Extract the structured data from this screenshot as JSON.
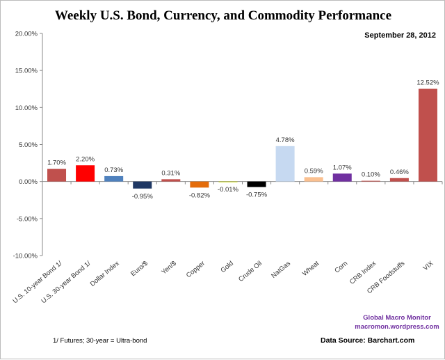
{
  "chart_data": {
    "type": "bar",
    "title": "Weekly U.S. Bond, Currency, and Commodity Performance",
    "date": "September 28, 2012",
    "categories": [
      "U.S. 10-year Bond 1/",
      "U.S. 30-year Bond 1/",
      "Dollar Index",
      "Euro/$",
      "Yen/$",
      "Copper",
      "Gold",
      "Crude Oil",
      "NatGas",
      "Wheat",
      "Corn",
      "CRB Index",
      "CRB Foodstuffs",
      "VIX"
    ],
    "values": [
      1.7,
      2.2,
      0.73,
      -0.95,
      0.31,
      -0.82,
      -0.01,
      -0.75,
      4.78,
      0.59,
      1.07,
      0.1,
      0.46,
      12.52
    ],
    "data_labels": [
      "1.70%",
      "2.20%",
      "0.73%",
      "-0.95%",
      "0.31%",
      "-0.82%",
      "-0.01%",
      "-0.75%",
      "4.78%",
      "0.59%",
      "1.07%",
      "0.10%",
      "0.46%",
      "12.52%"
    ],
    "colors": [
      "#c0504d",
      "#ff0000",
      "#4f81bd",
      "#1f3864",
      "#c0504d",
      "#e46c0a",
      "#c4d600",
      "#000000",
      "#c6d9f1",
      "#fac090",
      "#7030a0",
      "#c0504d",
      "#c0504d",
      "#c0504d"
    ],
    "ylim": [
      -10,
      20
    ],
    "yticks": [
      "-10.00%",
      "-5.00%",
      "0.00%",
      "5.00%",
      "10.00%",
      "15.00%",
      "20.00%"
    ],
    "ytick_values": [
      -10,
      -5,
      0,
      5,
      10,
      15,
      20
    ],
    "xlabel": "",
    "ylabel": "",
    "grid": false,
    "legend": "none"
  },
  "footnote": "1/ Futures; 30-year = Ultra-bond",
  "source": "Data Source:  Barchart.com",
  "credit_name": "Global  Macro  Monitor",
  "credit_url": "macromon.wordpress.com"
}
